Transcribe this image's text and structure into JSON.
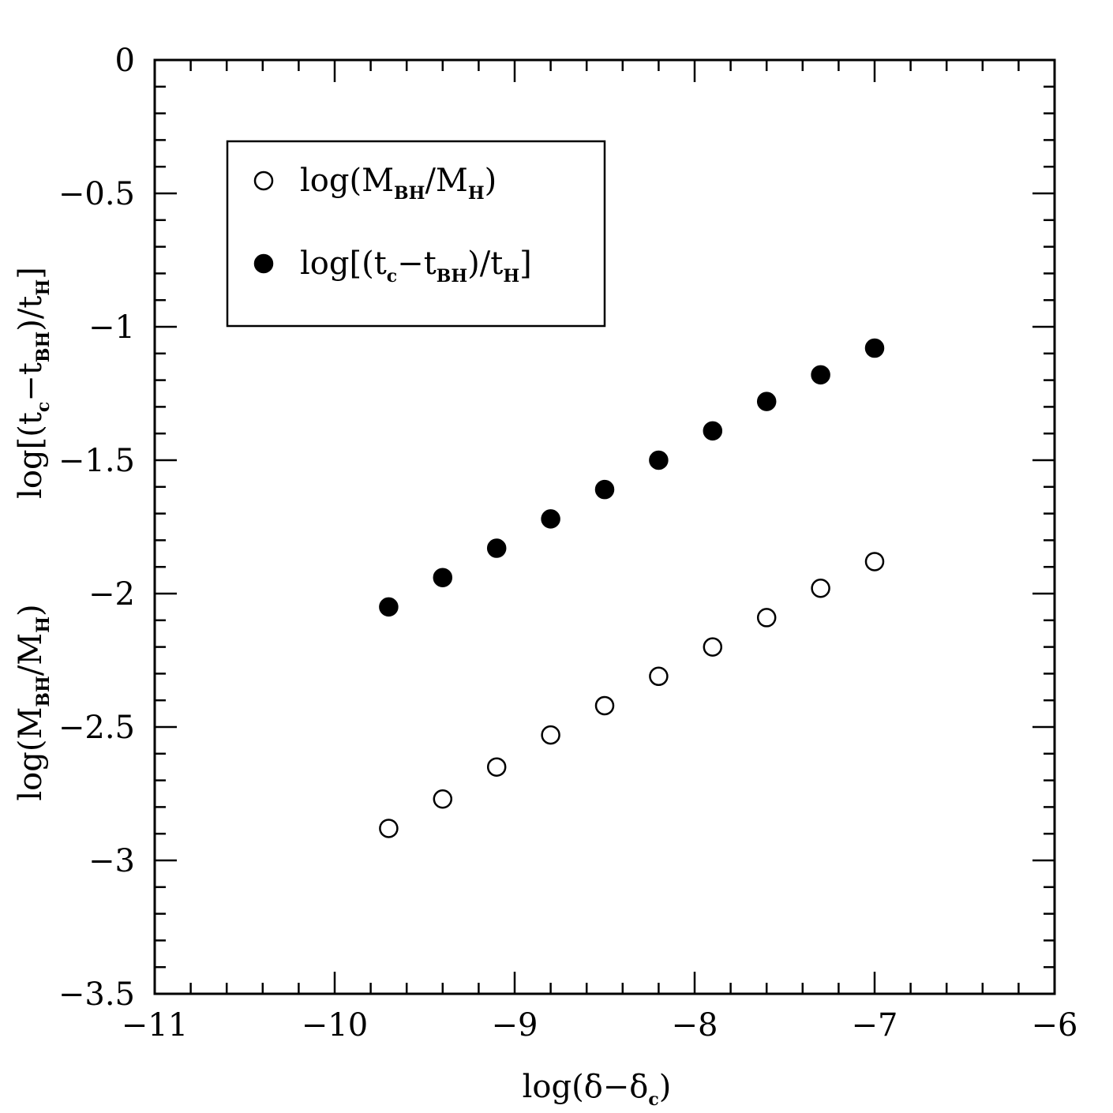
{
  "chart_data": {
    "type": "scatter",
    "xlabel": {
      "pre": "log(δ−δ",
      "sub": "c",
      "post": ")"
    },
    "ylabel_upper": {
      "parts": [
        {
          "t": "log[(t"
        },
        {
          "sub": "c"
        },
        {
          "t": "−t"
        },
        {
          "sub": "BH"
        },
        {
          "t": ")/t"
        },
        {
          "sub": "H"
        },
        {
          "t": "]"
        }
      ]
    },
    "ylabel_lower": {
      "parts": [
        {
          "t": "log(M"
        },
        {
          "sub": "BH"
        },
        {
          "t": "/M"
        },
        {
          "sub": "H"
        },
        {
          "t": ")"
        }
      ]
    },
    "xlim": [
      -11,
      -6
    ],
    "ylim": [
      -3.5,
      0
    ],
    "x_ticks": [
      -11,
      -10,
      -9,
      -8,
      -7,
      -6
    ],
    "x_tick_labels": [
      "−11",
      "−10",
      "−9",
      "−8",
      "−7",
      "−6"
    ],
    "y_ticks": [
      0,
      -0.5,
      -1,
      -1.5,
      -2,
      -2.5,
      -3,
      -3.5
    ],
    "y_tick_labels": [
      "0",
      "−0.5",
      "−1",
      "−1.5",
      "−2",
      "−2.5",
      "−3",
      "−3.5"
    ],
    "x_minor_step": 0.2,
    "y_minor_step": 0.1,
    "legend_placement": "top-left",
    "series": [
      {
        "name": "log(M_BH/M_H)",
        "legend_parts": [
          {
            "t": "log(M"
          },
          {
            "sub": "BH"
          },
          {
            "t": "/M"
          },
          {
            "sub": "H"
          },
          {
            "t": ")"
          }
        ],
        "marker": "open-circle",
        "x": [
          -9.7,
          -9.4,
          -9.1,
          -8.8,
          -8.5,
          -8.2,
          -7.9,
          -7.6,
          -7.3,
          -7.0
        ],
        "y": [
          -2.88,
          -2.77,
          -2.65,
          -2.53,
          -2.42,
          -2.31,
          -2.2,
          -2.09,
          -1.98,
          -1.88
        ]
      },
      {
        "name": "log[(t_c−t_BH)/t_H]",
        "legend_parts": [
          {
            "t": "log[(t"
          },
          {
            "sub": "c"
          },
          {
            "t": "−t"
          },
          {
            "sub": "BH"
          },
          {
            "t": ")/t"
          },
          {
            "sub": "H"
          },
          {
            "t": "]"
          }
        ],
        "marker": "filled-circle",
        "x": [
          -9.7,
          -9.4,
          -9.1,
          -8.8,
          -8.5,
          -8.2,
          -7.9,
          -7.6,
          -7.3,
          -7.0
        ],
        "y": [
          -2.05,
          -1.94,
          -1.83,
          -1.72,
          -1.61,
          -1.5,
          -1.39,
          -1.28,
          -1.18,
          -1.08
        ]
      }
    ]
  }
}
